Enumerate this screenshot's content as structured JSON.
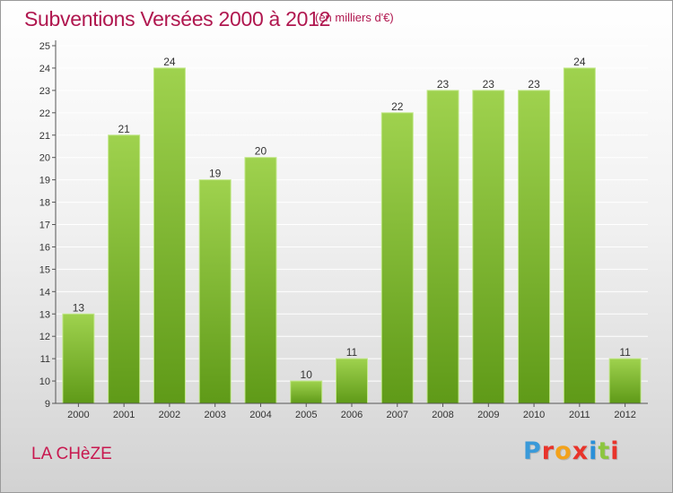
{
  "header": {
    "title": "Subventions Versées 2000 à 2012",
    "unit": "(en milliers d'€)"
  },
  "footer": {
    "commune": "LA CHèZE",
    "logo_letters": [
      "P",
      "r",
      "o",
      "x",
      "i",
      "t",
      "i"
    ],
    "logo_colors": [
      "#3a9ad9",
      "#e8342b",
      "#f3a21b",
      "#e8342b",
      "#2a8fd8",
      "#8cc63f",
      "#e8342b"
    ]
  },
  "chart_data": {
    "type": "bar",
    "title": "Subventions Versées 2000 à 2012",
    "subtitle": "(en milliers d'€)",
    "xlabel": "",
    "ylabel": "",
    "categories": [
      "2000",
      "2001",
      "2002",
      "2003",
      "2004",
      "2005",
      "2006",
      "2007",
      "2008",
      "2009",
      "2010",
      "2011",
      "2012"
    ],
    "values": [
      13,
      21,
      24,
      19,
      20,
      10,
      11,
      22,
      23,
      23,
      23,
      24,
      11
    ],
    "ylim": [
      9,
      25
    ],
    "yticks": [
      "9",
      "10",
      "11",
      "12",
      "13",
      "14",
      "15",
      "16",
      "17",
      "18",
      "19",
      "20",
      "21",
      "22",
      "23",
      "24",
      "25"
    ],
    "grid": true,
    "legend": "none",
    "colors": {
      "bar_top": "#9fd24e",
      "bar_bottom": "#5f9a18",
      "bar_edge": "#c2e88a",
      "grid": "#ffffff",
      "axis": "#555555"
    }
  }
}
